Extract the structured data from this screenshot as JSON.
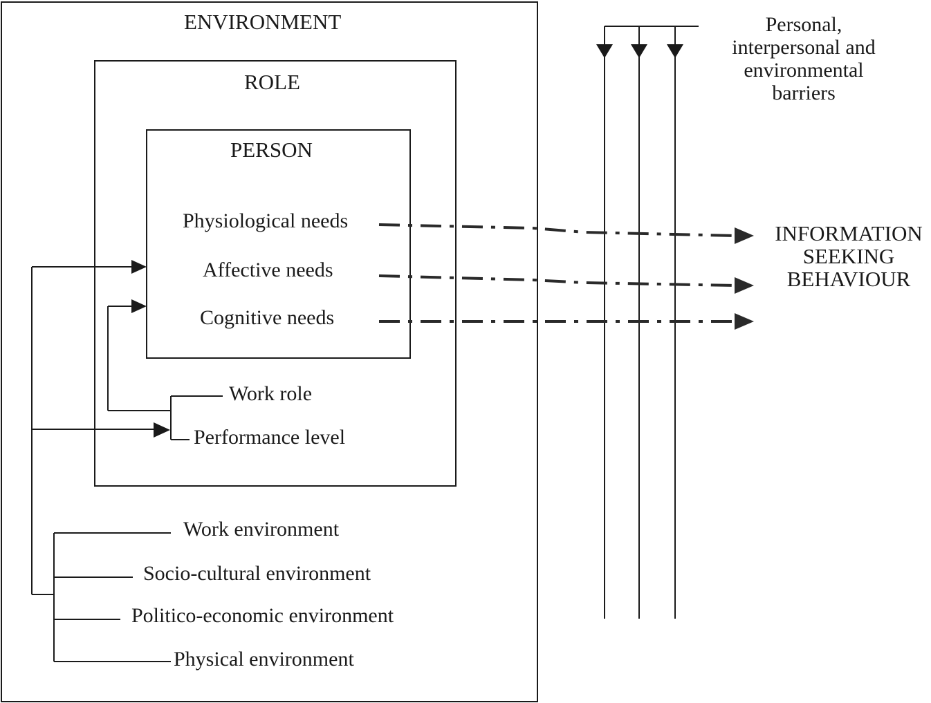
{
  "environment": {
    "title": "ENVIRONMENT",
    "items": [
      "Work environment",
      "Socio-cultural environment",
      "Politico-economic environment",
      "Physical environment"
    ]
  },
  "role": {
    "title": "ROLE",
    "items": [
      "Work role",
      "Performance level"
    ]
  },
  "person": {
    "title": "PERSON",
    "needs": [
      "Physiological needs",
      "Affective needs",
      "Cognitive needs"
    ]
  },
  "barriers": {
    "lines": [
      "Personal,",
      "interpersonal and",
      "environmental",
      "barriers"
    ]
  },
  "outcome": {
    "lines": [
      "INFORMATION",
      "SEEKING",
      "BEHAVIOUR"
    ]
  },
  "colors": {
    "ink": "#1a1a1a",
    "arrow": "#2a2a2a",
    "background": "#ffffff"
  }
}
